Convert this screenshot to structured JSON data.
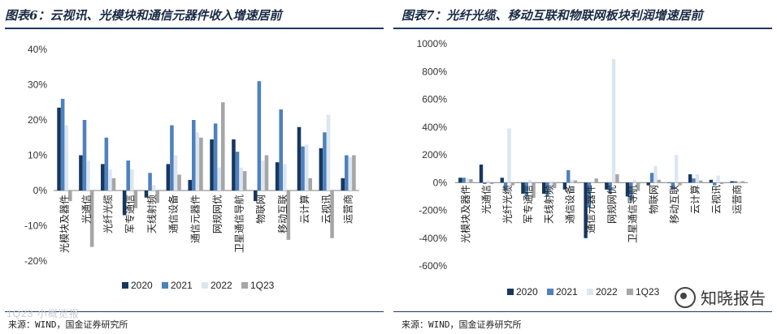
{
  "colors": {
    "s2020": "#17375e",
    "s2021": "#4f81bd",
    "s2022": "#dce6f2",
    "s1q23": "#a6a6a6",
    "title": "#1a2a44",
    "rule": "#1f3864"
  },
  "left": {
    "title": "图表6：云视讯、光模块和通信元器件收入增速居前",
    "source": "来源：WIND，国金证券研究所",
    "chart_data": {
      "type": "bar",
      "title": "图表6：云视讯、光模块和通信元器件收入增速居前",
      "categories": [
        "光模块及器件",
        "光通信",
        "光纤光缆",
        "军专通信",
        "天线射频",
        "通信设备",
        "通信元器件",
        "网规网优",
        "卫星通信导航",
        "物联网",
        "移动互联",
        "云计算",
        "云视讯",
        "运营商"
      ],
      "series": [
        {
          "name": "2020",
          "values": [
            23.5,
            10,
            7.5,
            -7,
            -2,
            7.5,
            3,
            14.5,
            14.5,
            -3,
            8,
            18,
            12,
            3.5
          ]
        },
        {
          "name": "2021",
          "values": [
            26,
            20,
            15,
            8.5,
            5,
            18.5,
            20,
            19,
            11,
            31,
            23,
            12.5,
            16.5,
            10
          ]
        },
        {
          "name": "2022",
          "values": [
            18.5,
            8.5,
            6,
            6,
            1.5,
            10,
            16.5,
            6.5,
            6.5,
            8.5,
            7.5,
            13,
            21.5,
            9.5
          ]
        },
        {
          "name": "1Q23",
          "values": [
            -3,
            -16,
            3.5,
            -5,
            -3.5,
            4.5,
            15,
            25,
            5.5,
            10,
            -14,
            3.5,
            -13.5,
            10
          ]
        }
      ],
      "ylim": [
        -20,
        40
      ],
      "yticks": [
        -20,
        -10,
        0,
        10,
        20,
        30,
        40
      ],
      "ytick_labels": [
        "-20%",
        "-10%",
        "0%",
        "10%",
        "20%",
        "30%",
        "40%"
      ],
      "legend": [
        "2020",
        "2021",
        "2022",
        "1Q23"
      ],
      "legend_position": "bottom"
    }
  },
  "right": {
    "title": "图表7：光纤光缆、移动互联和物联网板块利润增速居前",
    "source": "来源：WIND，国金证券研究所",
    "chart_data": {
      "type": "bar",
      "title": "图表7：光纤光缆、移动互联和物联网板块利润增速居前",
      "categories": [
        "光模块及器件",
        "光通信",
        "光纤光缆",
        "军专通信",
        "天线射频",
        "通信设备",
        "通信元器件",
        "网规网优",
        "卫星通信导航",
        "物联网",
        "移动互联",
        "云计算",
        "云视讯",
        "运营商"
      ],
      "series": [
        {
          "name": "2020",
          "values": [
            35,
            130,
            35,
            -80,
            -80,
            -50,
            -400,
            -50,
            -100,
            -20,
            0,
            60,
            20,
            10
          ]
        },
        {
          "name": "2021",
          "values": [
            35,
            -10,
            -60,
            -100,
            -100,
            90,
            -180,
            -80,
            -130,
            70,
            -50,
            30,
            -20,
            10
          ]
        },
        {
          "name": "2022",
          "values": [
            30,
            15,
            390,
            20,
            -60,
            20,
            10,
            890,
            20,
            120,
            200,
            60,
            50,
            10
          ]
        },
        {
          "name": "1Q23",
          "values": [
            25,
            -10,
            -20,
            -110,
            -40,
            15,
            30,
            60,
            -60,
            20,
            -20,
            15,
            -10,
            10
          ]
        }
      ],
      "ylim": [
        -600,
        1000
      ],
      "yticks": [
        -600,
        -400,
        -200,
        0,
        200,
        400,
        600,
        800,
        1000
      ],
      "ytick_labels": [
        "-600%",
        "-400%",
        "-200%",
        "0%",
        "200%",
        "400%",
        "600%",
        "800%",
        "1000%"
      ],
      "legend": [
        "2020",
        "2021",
        "2022",
        "1Q23"
      ],
      "legend_position": "bottom"
    }
  },
  "watermark": {
    "text": "知晓报告",
    "icon": "wechat-icon"
  },
  "faint_mark": "1Q23 小概览报"
}
